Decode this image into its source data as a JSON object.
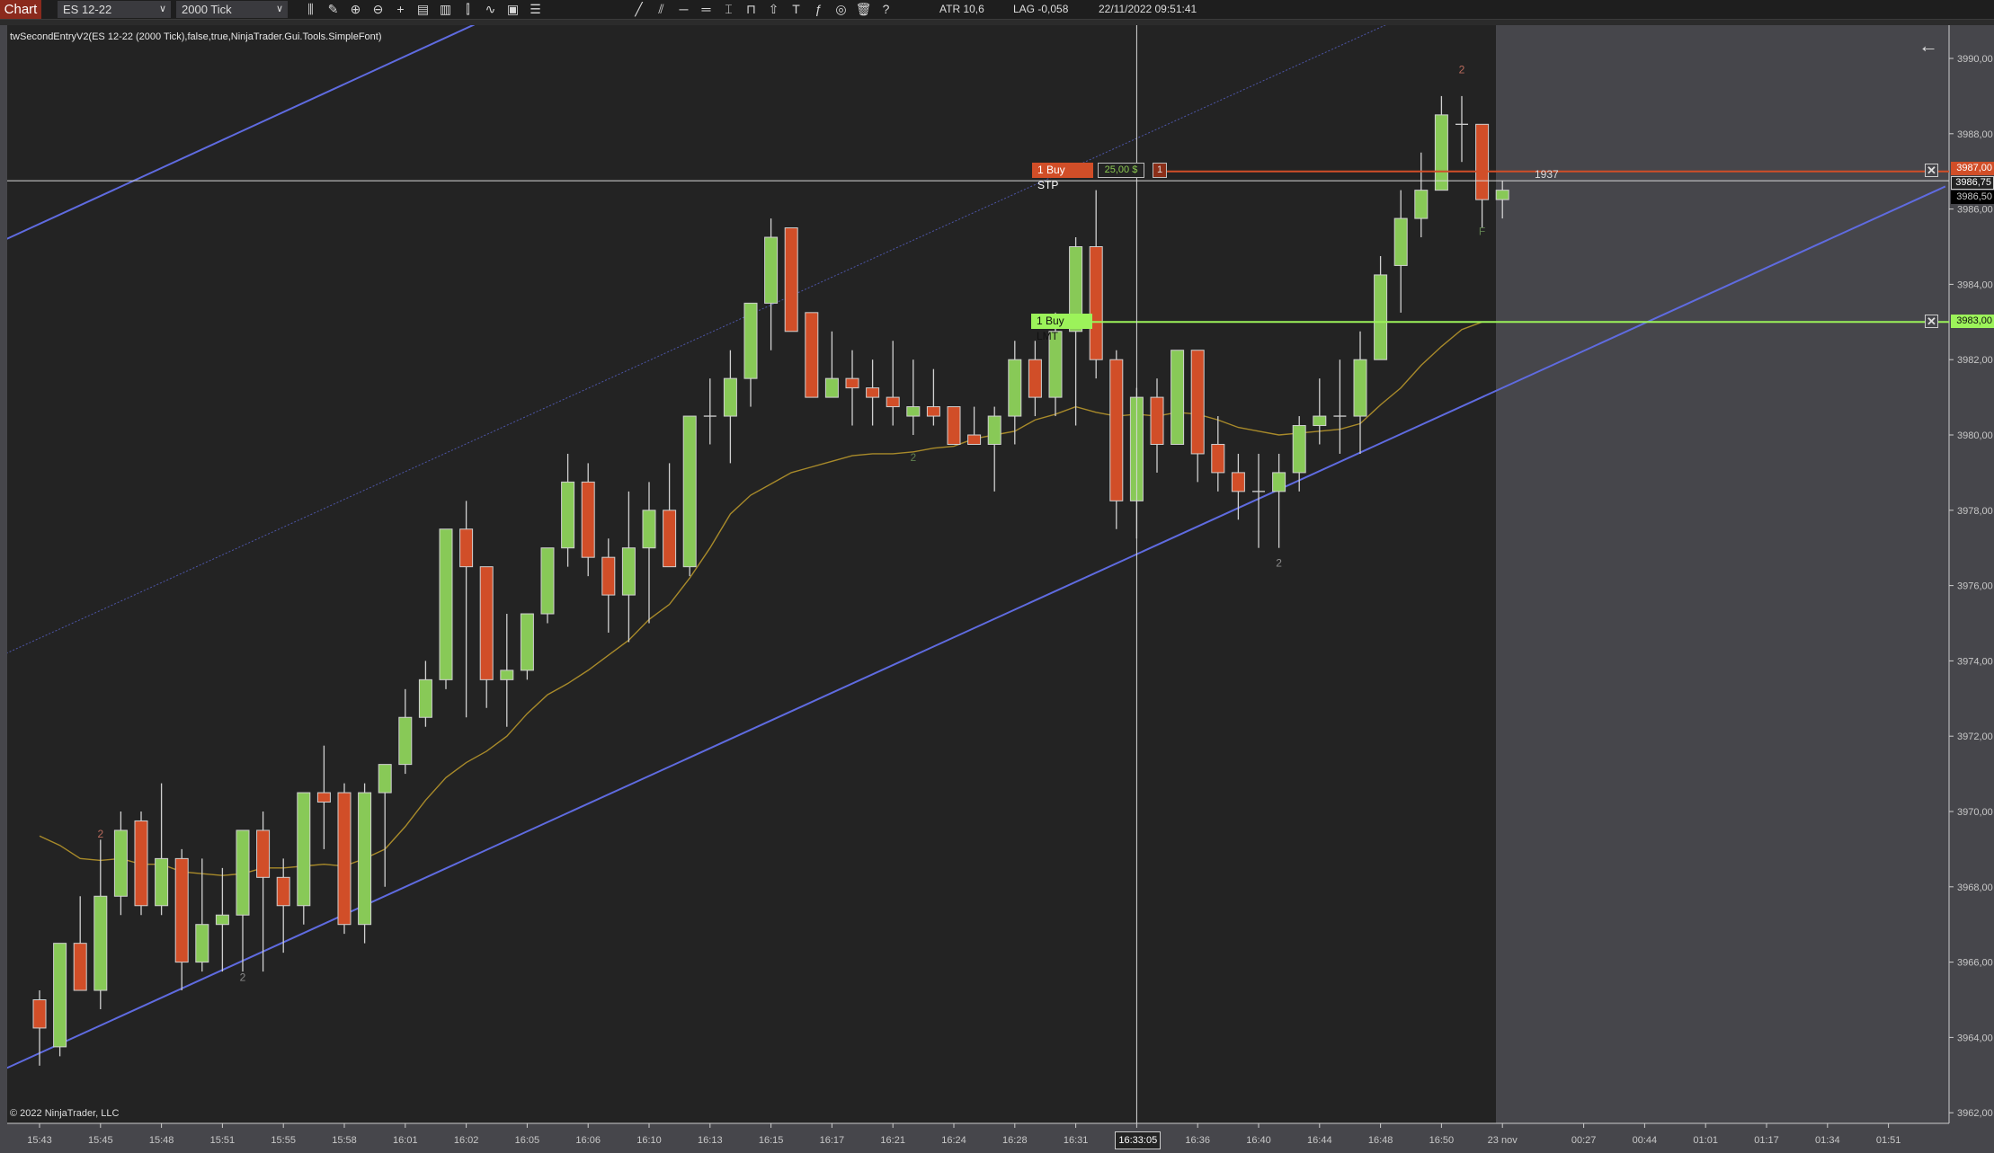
{
  "toolbar": {
    "chart_label": "Chart",
    "instrument": "ES 12-22",
    "interval": "2000 Tick",
    "icons": [
      "bar-type-icon",
      "pencil-icon",
      "zoom-in-icon",
      "zoom-out-icon",
      "crosshair-icon",
      "data-box-icon",
      "chart-trader-icon",
      "strategy-icon",
      "indicator-icon",
      "properties-icon",
      "list-icon",
      "line-icon",
      "parallel-lines-icon",
      "horizontal-line-icon",
      "double-horizontal-icon",
      "ruler-icon",
      "range-icon",
      "arrow-up-icon",
      "text-icon",
      "fibonacci-icon",
      "eye-icon",
      "trash-icon",
      "help-icon"
    ],
    "icon_glyphs": [
      "⫼",
      "✎",
      "⊕",
      "⊖",
      "+",
      "▤",
      "▥",
      "⫿",
      "∿",
      "▣",
      "☰",
      "╱",
      "⫽",
      "─",
      "═",
      "⌶",
      "⊓",
      "⇧",
      "T",
      "ƒ",
      "◎",
      "🗑",
      "?"
    ],
    "atr": "ATR 10,6",
    "lag": "LAG -0,058",
    "datetime": "22/11/2022 09:51:41"
  },
  "chart": {
    "indicator_label": "twSecondEntryV2(ES 12-22 (2000 Tick),false,true,NinjaTrader.Gui.Tools.SimpleFont)",
    "copyright": "© 2022 NinjaTrader, LLC",
    "bar_timer": "1937",
    "colors": {
      "background": "#232323",
      "future_area": "#46464b",
      "up": "#88c957",
      "down": "#d14e28",
      "wick": "#d0d0d0",
      "sma": "#a88a2a",
      "trendline": "#5f6be0",
      "stop_order": "#d14e28",
      "limit_order": "#9cf35a"
    },
    "price_axis": {
      "min": 3962,
      "max": 3990,
      "step": 2,
      "labels": [
        "3990,00",
        "3988,00",
        "3986,00",
        "3984,00",
        "3982,00",
        "3980,00",
        "3978,00",
        "3976,00",
        "3974,00",
        "3972,00",
        "3970,00",
        "3968,00",
        "3966,00",
        "3964,00",
        "3962,00"
      ]
    },
    "time_axis": [
      "15:43",
      "15:45",
      "15:48",
      "15:51",
      "15:55",
      "15:58",
      "16:01",
      "16:02",
      "16:05",
      "16:06",
      "16:10",
      "16:13",
      "16:15",
      "16:17",
      "16:21",
      "16:24",
      "16:28",
      "16:31",
      "16:33:05",
      "16:36",
      "16:40",
      "16:44",
      "16:48",
      "16:50",
      "23 nov",
      "00:27",
      "00:44",
      "01:01",
      "01:17",
      "01:34",
      "01:51"
    ],
    "crosshair": {
      "time": "16:33:05",
      "price": 3986.75,
      "price_label": "3986,75"
    },
    "last_price": {
      "price": 3986.5,
      "label": "3986,50"
    },
    "candles": {
      "open": [
        3965,
        3963.75,
        3966.5,
        3965.25,
        3967.75,
        3969.75,
        3967.5,
        3968.75,
        3966,
        3967,
        3967.25,
        3969.5,
        3968.25,
        3967.5,
        3970.5,
        3970.5,
        3967,
        3970.5,
        3971.25,
        3972.5,
        3973.5,
        3977.5,
        3976.5,
        3973.5,
        3973.75,
        3975.25,
        3977,
        3978.75,
        3976.75,
        3975.75,
        3977,
        3978,
        3976.5,
        3980.5,
        3980.5,
        3981.5,
        3983.5,
        3985.5,
        3983.25,
        3981,
        3981.5,
        3981.25,
        3981,
        3980.5,
        3980.75,
        3980.75,
        3980,
        3979.75,
        3980.5,
        3982,
        3981,
        3982.75,
        3985,
        3982,
        3978.25,
        3981,
        3979.75,
        3982.25,
        3979.75,
        3979,
        3978.5,
        3978.5,
        3979,
        3980.25,
        3980.5,
        3980.5,
        3982,
        3984.5,
        3985.75,
        3986.5,
        3988.25,
        3988.25,
        3986.25
      ],
      "high": [
        3965.25,
        3966.5,
        3967.75,
        3969.25,
        3970,
        3970,
        3970.75,
        3969,
        3968.75,
        3968.5,
        3969.5,
        3970,
        3968.75,
        3970.5,
        3971.75,
        3970.75,
        3970.75,
        3971.25,
        3973.25,
        3974,
        3977.5,
        3978.25,
        3976.5,
        3975.25,
        3975.25,
        3977,
        3979.5,
        3979.25,
        3977.25,
        3978.5,
        3978.75,
        3979.25,
        3980.5,
        3981.5,
        3982.25,
        3983.5,
        3985.75,
        3985.5,
        3983.25,
        3982.75,
        3982.25,
        3982,
        3982.5,
        3982,
        3981.75,
        3980.75,
        3980.75,
        3980.75,
        3982.5,
        3982.5,
        3983.25,
        3985.25,
        3986.5,
        3982.25,
        3981.25,
        3981.5,
        3982.25,
        3982.25,
        3980.5,
        3979.5,
        3979.5,
        3979.5,
        3980.5,
        3981.5,
        3982,
        3982.75,
        3984.75,
        3986.5,
        3987.5,
        3989,
        3989,
        3988.25,
        3986.75
      ],
      "low": [
        3963.25,
        3963.5,
        3965.25,
        3964.75,
        3967.25,
        3967.25,
        3967.25,
        3965.25,
        3965.75,
        3965.75,
        3965.75,
        3965.75,
        3966.25,
        3967,
        3969,
        3966.75,
        3966.5,
        3968,
        3971,
        3972.25,
        3973.25,
        3972.5,
        3972.75,
        3972.25,
        3973.5,
        3975,
        3976.5,
        3976.25,
        3974.75,
        3974.5,
        3975,
        3976.5,
        3976.25,
        3979.75,
        3979.25,
        3980.75,
        3982.25,
        3982.75,
        3981,
        3981,
        3980.25,
        3980.25,
        3980.25,
        3980,
        3980.25,
        3979.75,
        3979.75,
        3978.5,
        3979.75,
        3980.5,
        3980.5,
        3980.25,
        3981.5,
        3977.5,
        3977.25,
        3979,
        3979.75,
        3978.75,
        3978.5,
        3977.75,
        3977,
        3977,
        3978.5,
        3979.75,
        3979.5,
        3979.5,
        3982,
        3983.25,
        3985.25,
        3986.5,
        3987.25,
        3985.5,
        3985.75
      ],
      "close": [
        3964.25,
        3966.5,
        3965.25,
        3967.75,
        3969.5,
        3967.5,
        3968.75,
        3966,
        3967,
        3967.25,
        3969.5,
        3968.25,
        3967.5,
        3970.5,
        3970.25,
        3967,
        3970.5,
        3971.25,
        3972.5,
        3973.5,
        3977.5,
        3976.5,
        3973.5,
        3973.75,
        3975.25,
        3977,
        3978.75,
        3976.75,
        3975.75,
        3977,
        3978,
        3976.5,
        3980.5,
        3980.5,
        3981.5,
        3983.5,
        3985.25,
        3982.75,
        3981,
        3981.5,
        3981.25,
        3981,
        3980.75,
        3980.75,
        3980.5,
        3979.75,
        3979.75,
        3980.5,
        3982,
        3981,
        3982.75,
        3985,
        3982,
        3978.25,
        3981,
        3979.75,
        3982.25,
        3979.5,
        3979,
        3978.5,
        3978.5,
        3979,
        3980.25,
        3980.5,
        3980.5,
        3982,
        3984.25,
        3985.75,
        3986.5,
        3988.5,
        3988.25,
        3986.25,
        3986.5
      ]
    },
    "sma": [
      3969.35,
      3969.1,
      3968.75,
      3968.7,
      3968.75,
      3968.6,
      3968.6,
      3968.4,
      3968.35,
      3968.3,
      3968.35,
      3968.5,
      3968.5,
      3968.55,
      3968.6,
      3968.55,
      3968.75,
      3969,
      3969.6,
      3970.3,
      3970.9,
      3971.3,
      3971.6,
      3972,
      3972.6,
      3973.1,
      3973.4,
      3973.75,
      3974.15,
      3974.55,
      3975.1,
      3975.5,
      3976.2,
      3977,
      3977.9,
      3978.4,
      3978.7,
      3979,
      3979.15,
      3979.3,
      3979.45,
      3979.5,
      3979.5,
      3979.55,
      3979.65,
      3979.7,
      3979.9,
      3980,
      3980.1,
      3980.4,
      3980.55,
      3980.75,
      3980.6,
      3980.5,
      3980.55,
      3980.5,
      3980.6,
      3980.55,
      3980.4,
      3980.2,
      3980.1,
      3980,
      3980.05,
      3980.1,
      3980.15,
      3980.3,
      3980.8,
      3981.25,
      3981.85,
      3982.35,
      3982.8,
      3983
    ],
    "drawings": [
      {
        "name": "lower-trend-line",
        "style": "solid",
        "from": {
          "bar": -1.64,
          "price": 3963.18
        },
        "to": {
          "bar": 93.8,
          "price": 3986.6
        }
      },
      {
        "name": "upper-channel-line",
        "style": "solid",
        "from": {
          "bar": -1.64,
          "price": 3985.2
        },
        "to": {
          "bar": 21.4,
          "price": 3990.9
        }
      },
      {
        "name": "middle-channel-line",
        "style": "dotted",
        "from": {
          "bar": -1.64,
          "price": 3974.2
        },
        "to": {
          "bar": 66.3,
          "price": 3990.9
        }
      }
    ],
    "markers": [
      {
        "bar": 3,
        "price": 3969.4,
        "text": "2",
        "color": "#b86a5c"
      },
      {
        "bar": 10,
        "price": 3965.6,
        "text": "2",
        "color": "#8a8a8a"
      },
      {
        "bar": 43,
        "price": 3979.4,
        "text": "2",
        "color": "#5f7f4f"
      },
      {
        "bar": 61,
        "price": 3976.6,
        "text": "2",
        "color": "#8a8a8a"
      },
      {
        "bar": 70,
        "price": 3989.7,
        "text": "2",
        "color": "#b86a5c"
      },
      {
        "bar": 71,
        "price": 3985.4,
        "text": "F",
        "color": "#5f7f4f"
      }
    ],
    "orders": {
      "stop": {
        "label": "1  Buy STP",
        "pnl": "25,00 $",
        "qty": "1",
        "price": 3987,
        "price_label": "3987,00"
      },
      "limit": {
        "label": "1  Buy LMT",
        "price": 3983,
        "price_label": "3983,00"
      }
    }
  }
}
